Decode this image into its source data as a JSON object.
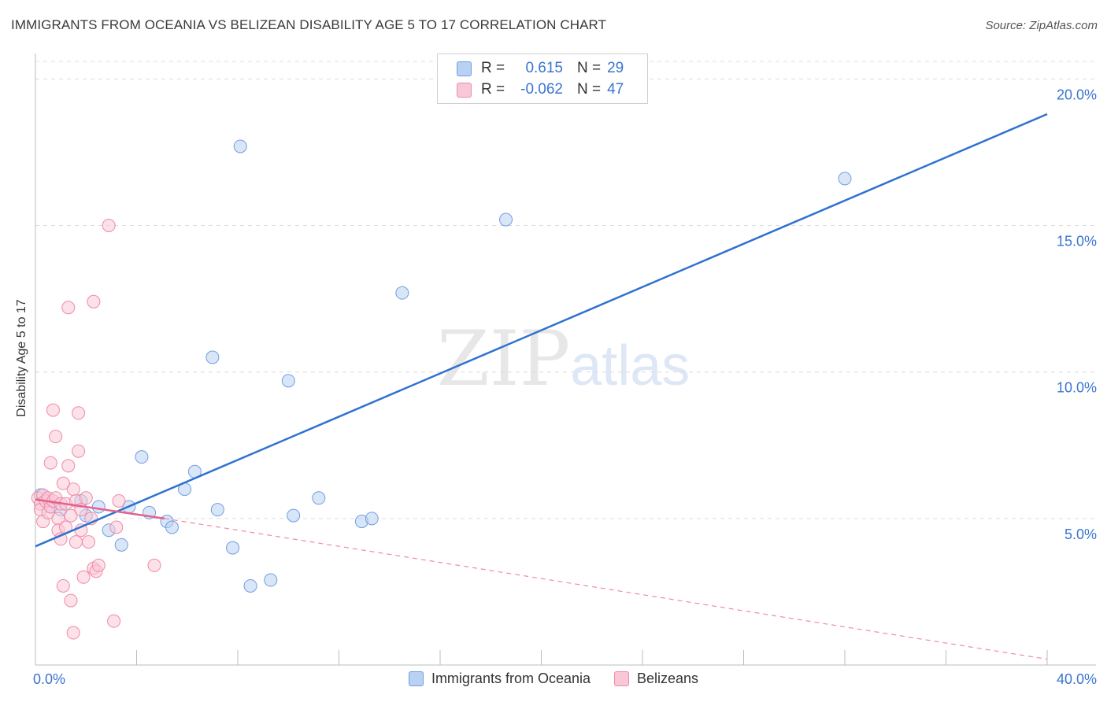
{
  "title": "IMMIGRANTS FROM OCEANIA VS BELIZEAN DISABILITY AGE 5 TO 17 CORRELATION CHART",
  "source": "Source: ZipAtlas.com",
  "watermark": {
    "zip": "ZIP",
    "atlas": "atlas"
  },
  "legend": {
    "r_label": "R =",
    "n_label": "N =",
    "rows": [
      {
        "r": "0.615",
        "n": "29",
        "fill": "#b9d2f3",
        "stroke": "#6f9ee0"
      },
      {
        "r": "-0.062",
        "n": "47",
        "fill": "#f9c8d7",
        "stroke": "#ef8aa9"
      }
    ],
    "value_color": "#3a74d0"
  },
  "chart_data": {
    "type": "scatter",
    "title": "IMMIGRANTS FROM OCEANIA VS BELIZEAN DISABILITY AGE 5 TO 17 CORRELATION CHART",
    "xlabel": "",
    "ylabel": "Disability Age 5 to 17",
    "xlim": [
      0,
      40
    ],
    "ylim": [
      0,
      20.6
    ],
    "x_tick_labels": [
      "0.0%",
      "40.0%"
    ],
    "y_ticks": [
      5,
      10,
      15,
      20
    ],
    "y_tick_labels": [
      "5.0%",
      "10.0%",
      "15.0%",
      "20.0%"
    ],
    "grid": true,
    "legend_position": "top-center",
    "series": [
      {
        "name": "Immigrants from Oceania",
        "color": "#6f9ee0",
        "fill": "#b9d2f3",
        "points": [
          [
            0.2,
            5.8
          ],
          [
            0.6,
            5.4
          ],
          [
            1.8,
            5.6
          ],
          [
            2.0,
            5.1
          ],
          [
            2.5,
            5.4
          ],
          [
            2.9,
            4.6
          ],
          [
            3.4,
            4.1
          ],
          [
            3.7,
            5.4
          ],
          [
            4.2,
            7.1
          ],
          [
            4.5,
            5.2
          ],
          [
            5.2,
            4.9
          ],
          [
            5.4,
            4.7
          ],
          [
            5.9,
            6.0
          ],
          [
            6.3,
            6.6
          ],
          [
            7.0,
            10.5
          ],
          [
            7.2,
            5.3
          ],
          [
            7.8,
            4.0
          ],
          [
            8.1,
            17.7
          ],
          [
            8.5,
            2.7
          ],
          [
            9.3,
            2.9
          ],
          [
            10.0,
            9.7
          ],
          [
            10.2,
            5.1
          ],
          [
            11.2,
            5.7
          ],
          [
            12.9,
            4.9
          ],
          [
            13.3,
            5.0
          ],
          [
            14.5,
            12.7
          ],
          [
            18.6,
            15.2
          ],
          [
            32.0,
            16.6
          ],
          [
            1.0,
            5.3
          ]
        ],
        "trend": {
          "x": [
            0,
            40
          ],
          "y": [
            4.05,
            18.8
          ]
        }
      },
      {
        "name": "Belizeans",
        "color": "#ef8aa9",
        "fill": "#f9c8d7",
        "points": [
          [
            0.1,
            5.7
          ],
          [
            0.2,
            5.5
          ],
          [
            0.2,
            5.3
          ],
          [
            0.3,
            5.8
          ],
          [
            0.3,
            4.9
          ],
          [
            0.4,
            5.6
          ],
          [
            0.5,
            5.2
          ],
          [
            0.5,
            5.7
          ],
          [
            0.6,
            6.9
          ],
          [
            0.6,
            5.4
          ],
          [
            0.7,
            8.7
          ],
          [
            0.7,
            5.6
          ],
          [
            0.8,
            5.7
          ],
          [
            0.8,
            7.8
          ],
          [
            0.9,
            5.0
          ],
          [
            0.9,
            4.6
          ],
          [
            1.0,
            4.3
          ],
          [
            1.0,
            5.5
          ],
          [
            1.1,
            2.7
          ],
          [
            1.2,
            4.7
          ],
          [
            1.2,
            5.5
          ],
          [
            1.3,
            12.2
          ],
          [
            1.3,
            6.8
          ],
          [
            1.4,
            5.1
          ],
          [
            1.4,
            2.2
          ],
          [
            1.5,
            1.1
          ],
          [
            1.5,
            6.0
          ],
          [
            1.6,
            4.2
          ],
          [
            1.6,
            5.6
          ],
          [
            1.7,
            7.3
          ],
          [
            1.7,
            8.6
          ],
          [
            1.8,
            4.6
          ],
          [
            1.8,
            5.3
          ],
          [
            1.9,
            3.0
          ],
          [
            2.0,
            5.7
          ],
          [
            2.1,
            4.2
          ],
          [
            2.2,
            5.0
          ],
          [
            2.3,
            3.3
          ],
          [
            2.3,
            12.4
          ],
          [
            2.4,
            3.2
          ],
          [
            2.5,
            3.4
          ],
          [
            2.9,
            15.0
          ],
          [
            3.1,
            1.5
          ],
          [
            3.2,
            4.7
          ],
          [
            3.3,
            5.6
          ],
          [
            4.7,
            3.4
          ],
          [
            1.1,
            6.2
          ]
        ],
        "trend": {
          "x": [
            0,
            5.1
          ],
          "y": [
            5.65,
            5.0
          ]
        },
        "trend_extension": {
          "x": [
            5.1,
            40
          ],
          "y": [
            5.0,
            0.2
          ]
        }
      }
    ]
  }
}
